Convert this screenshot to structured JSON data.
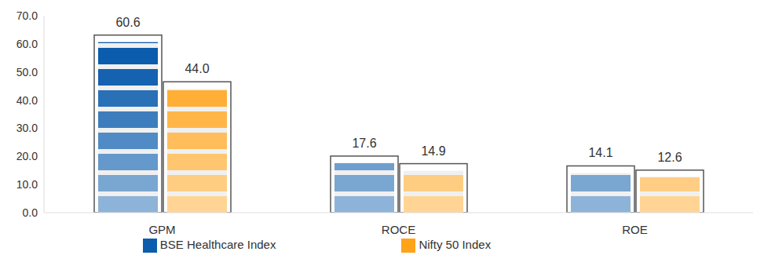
{
  "chart_data": {
    "type": "bar",
    "categories": [
      "GPM",
      "ROCE",
      "ROE"
    ],
    "series": [
      {
        "name": "BSE Healthcare Index",
        "color": "#0b5cad",
        "values": [
          60.6,
          17.6,
          14.1
        ],
        "value_labels": [
          "60.6",
          "17.6",
          "14.1"
        ]
      },
      {
        "name": "Nifty 50 Index",
        "color": "#ffa31a",
        "values": [
          44.0,
          14.9,
          12.6
        ],
        "value_labels": [
          "44.0",
          "14.9",
          "12.6"
        ]
      }
    ],
    "ylim": [
      0,
      70
    ],
    "yticks": [
      {
        "value": 0,
        "label": "0.0"
      },
      {
        "value": 10,
        "label": "10.0"
      },
      {
        "value": 20,
        "label": "20.0"
      },
      {
        "value": 30,
        "label": "30.0"
      },
      {
        "value": 40,
        "label": "40.0"
      },
      {
        "value": 50,
        "label": "50.0"
      },
      {
        "value": 60,
        "label": "60.0"
      },
      {
        "value": 70,
        "label": "70.0"
      }
    ],
    "grid": false,
    "legend": "bottom",
    "data_labels": true
  }
}
